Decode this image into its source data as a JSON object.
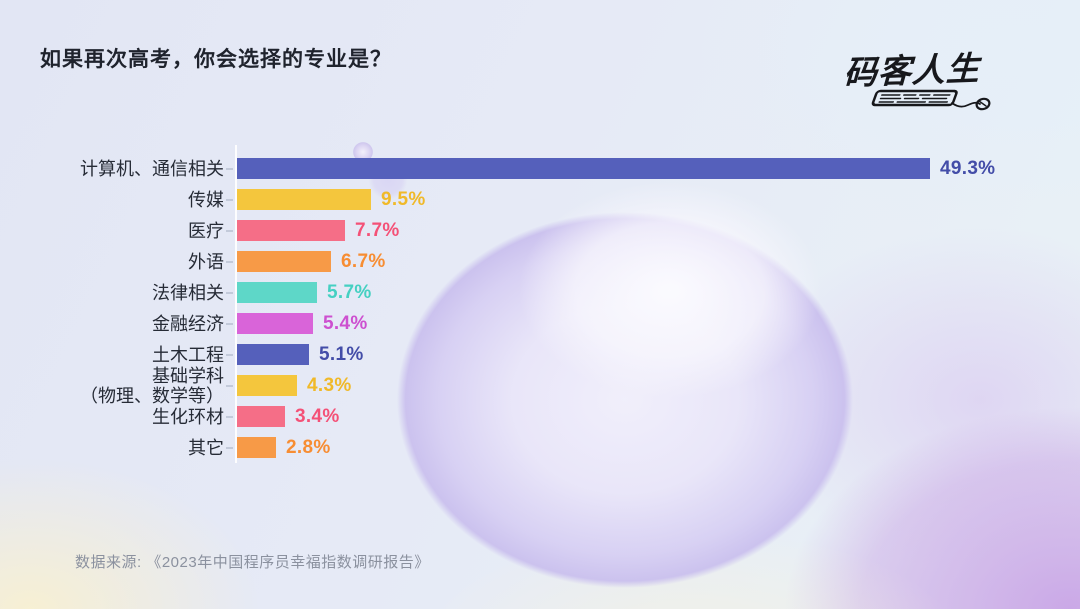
{
  "page": {
    "title": "如果再次高考，你会选择的专业是？"
  },
  "logo": {
    "text": "码客人生",
    "color": "#17181c"
  },
  "chart_data": {
    "type": "bar",
    "orientation": "horizontal",
    "title": "如果再次高考，你会选择的专业是？",
    "categories": [
      "计算机、通信相关",
      "传媒",
      "医疗",
      "外语",
      "法律相关",
      "金融经济",
      "土木工程",
      "基础学科\n（物理、数学等）",
      "生化环材",
      "其它"
    ],
    "values": [
      49.3,
      9.5,
      7.7,
      6.7,
      5.7,
      5.4,
      5.1,
      4.3,
      3.4,
      2.8
    ],
    "value_labels": [
      "49.3%",
      "9.5%",
      "7.7%",
      "6.7%",
      "5.7%",
      "5.4%",
      "5.1%",
      "4.3%",
      "3.4%",
      "2.8%"
    ],
    "bar_colors": [
      "#5560bb",
      "#f4c63d",
      "#f56e87",
      "#f79a47",
      "#5ed7c8",
      "#d964d9",
      "#5560bb",
      "#f4c63d",
      "#f56e87",
      "#f79a47"
    ],
    "value_text_colors": [
      "#434da8",
      "#f0b929",
      "#f45177",
      "#f78d33",
      "#45d0c2",
      "#cd50d0",
      "#434da8",
      "#f0b929",
      "#f45177",
      "#f78d33"
    ],
    "xlim": [
      0,
      52
    ],
    "grid": false,
    "legend": false,
    "axis_color": "#ffffff",
    "tick_color": "#c3cada",
    "label_color": "#262b36"
  },
  "footer": {
    "source": "数据来源: 《2023年中国程序员幸福指数调研报告》"
  }
}
